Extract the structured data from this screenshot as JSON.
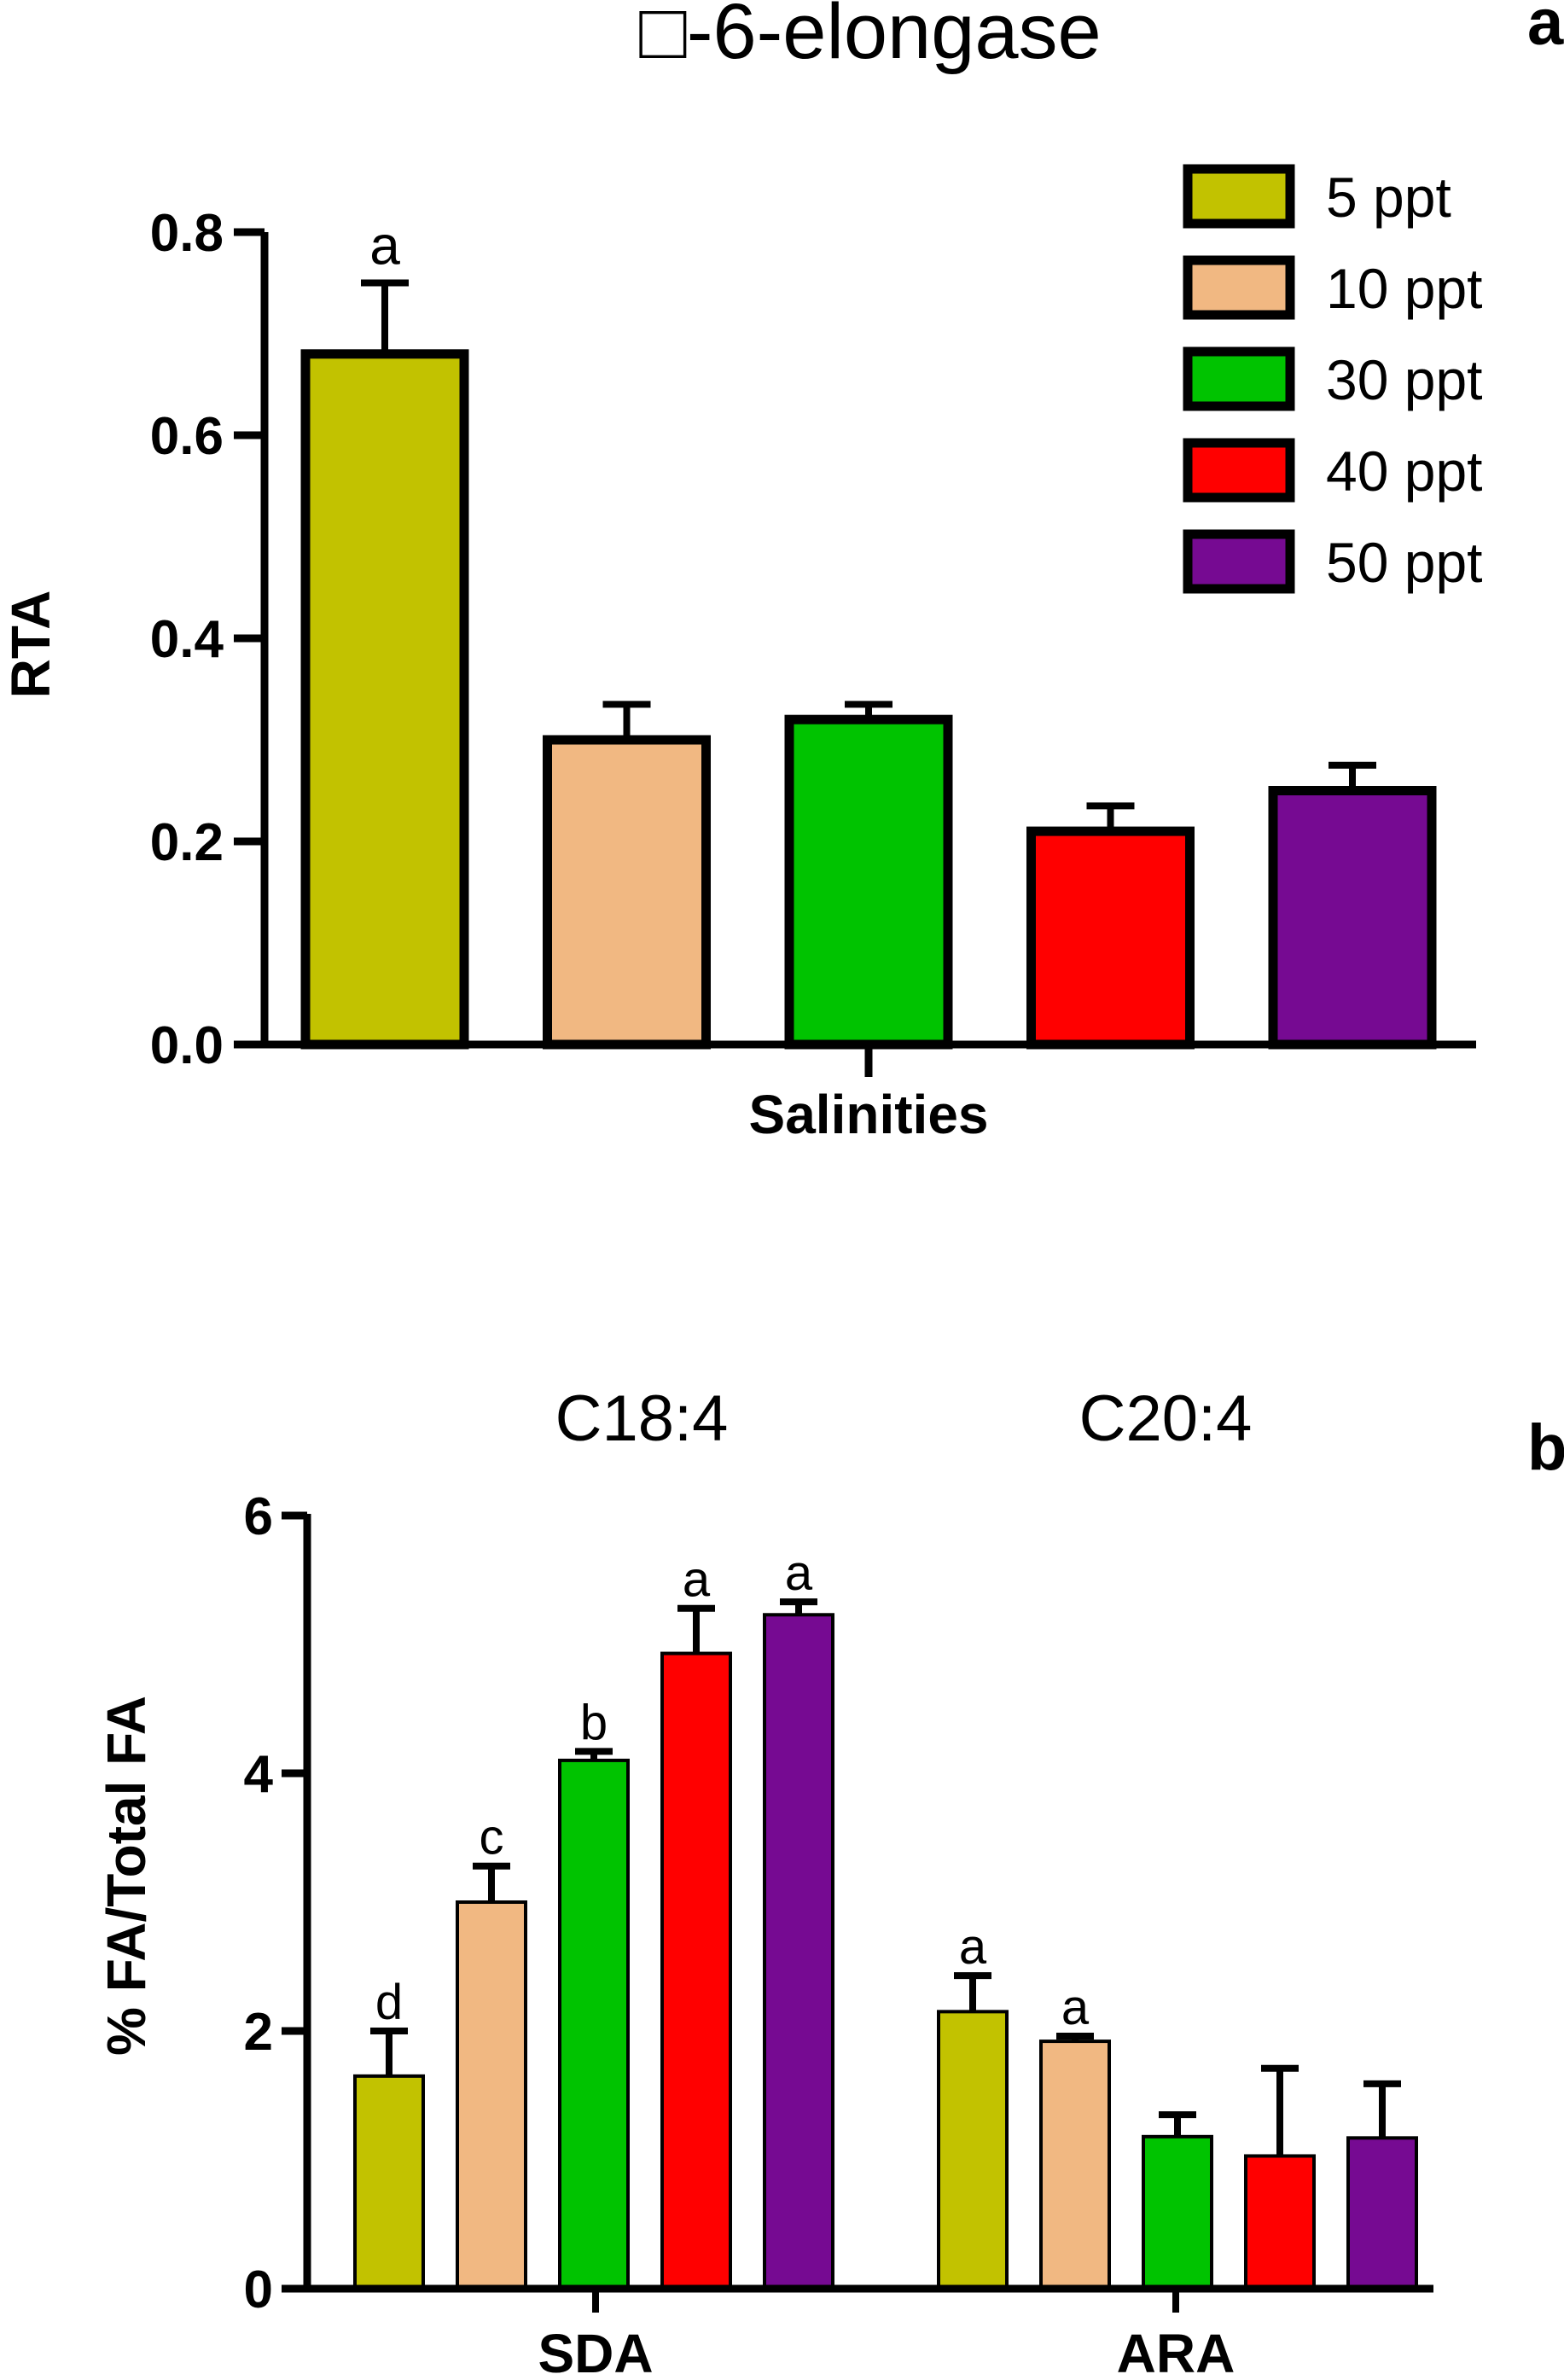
{
  "chart_data": [
    {
      "panel_label": "a",
      "type": "bar",
      "title": "□-6-elongase",
      "xlabel": "Salinities",
      "ylabel": "RTA",
      "ylim": [
        0,
        0.8
      ],
      "yticks": [
        "0.0",
        "0.2",
        "0.4",
        "0.6",
        "0.8"
      ],
      "legend_position": "top-right",
      "series": [
        {
          "name": "5 ppt",
          "color": "#C2C200",
          "value": 0.68,
          "error": 0.07,
          "letter": "a"
        },
        {
          "name": "10 ppt",
          "color": "#F1B882",
          "value": 0.3,
          "error": 0.035,
          "letter": ""
        },
        {
          "name": "30 ppt",
          "color": "#00C300",
          "value": 0.32,
          "error": 0.015,
          "letter": ""
        },
        {
          "name": "40 ppt",
          "color": "#FF0000",
          "value": 0.21,
          "error": 0.025,
          "letter": ""
        },
        {
          "name": "50 ppt",
          "color": "#760A92",
          "value": 0.25,
          "error": 0.025,
          "letter": ""
        }
      ]
    },
    {
      "panel_label": "b",
      "type": "bar",
      "xlabel": "",
      "ylabel": "% FA/Total FA",
      "ylim": [
        0,
        6
      ],
      "yticks": [
        "0",
        "2",
        "4",
        "6"
      ],
      "categories": [
        "SDA",
        "ARA"
      ],
      "category_titles": [
        "C18:4",
        "C20:4"
      ],
      "series": [
        {
          "name": "5 ppt",
          "color": "#C2C200",
          "values": [
            1.65,
            2.15
          ],
          "errors": [
            0.35,
            0.28
          ],
          "letters": [
            "d",
            "a"
          ]
        },
        {
          "name": "10 ppt",
          "color": "#F1B882",
          "values": [
            3.0,
            1.92
          ],
          "errors": [
            0.28,
            0.04
          ],
          "letters": [
            "c",
            "a"
          ]
        },
        {
          "name": "30 ppt",
          "color": "#00C300",
          "values": [
            4.1,
            1.18
          ],
          "errors": [
            0.07,
            0.17
          ],
          "letters": [
            "b",
            ""
          ]
        },
        {
          "name": "40 ppt",
          "color": "#FF0000",
          "values": [
            4.93,
            1.03
          ],
          "errors": [
            0.35,
            0.68
          ],
          "letters": [
            "a",
            ""
          ]
        },
        {
          "name": "50 ppt",
          "color": "#760A92",
          "values": [
            5.23,
            1.17
          ],
          "errors": [
            0.1,
            0.42
          ],
          "letters": [
            "a",
            ""
          ]
        }
      ]
    }
  ]
}
